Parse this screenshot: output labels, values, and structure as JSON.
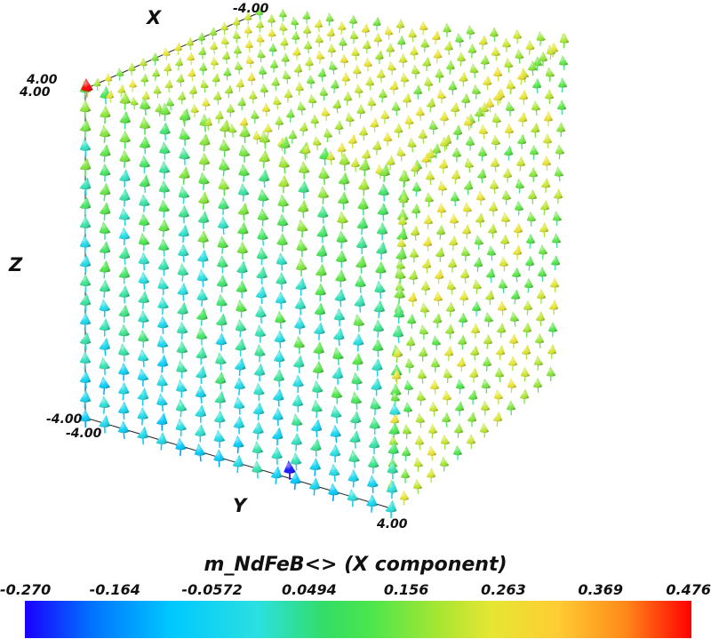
{
  "axes": {
    "x_label": "X",
    "y_label": "Y",
    "z_label": "Z",
    "x_tick_top": "-4.00",
    "z_tick_top_a": "4.00",
    "z_tick_top_b": "4.00",
    "z_tick_bottom_a": "-4.00",
    "z_tick_bottom_b": "-4.00",
    "y_tick_end": "4.00"
  },
  "legend": {
    "title": "m_NdFeB<> (X component)",
    "ticks": [
      "-0.270",
      "-0.164",
      "-0.0572",
      "0.0494",
      "0.156",
      "0.263",
      "0.369",
      "0.476"
    ],
    "range": [
      -0.27,
      0.476
    ]
  },
  "visual": {
    "description_colors": {
      "low": "#1a00ff",
      "mid": "#4ce64c",
      "high": "#ff0000"
    },
    "glyph_shape": "cone-arrow",
    "scene": "3D cube of magnetization arrows"
  }
}
